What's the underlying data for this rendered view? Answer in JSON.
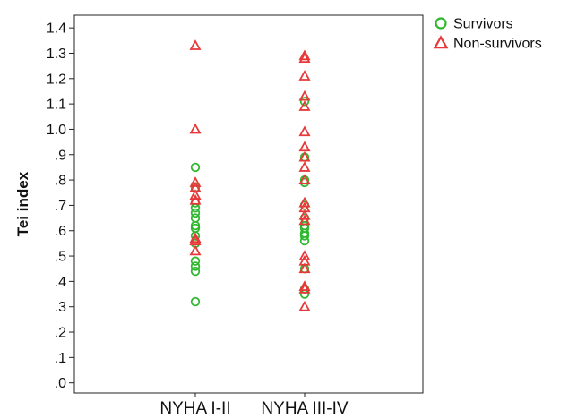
{
  "chart_data": {
    "type": "scatter",
    "title": "",
    "xlabel": "",
    "ylabel": "Tei index",
    "categories": [
      "NYHA I-II",
      "NYHA III-IV"
    ],
    "ylim": [
      -0.04,
      1.45
    ],
    "yticks": [
      ".0",
      ".1",
      ".2",
      ".3",
      ".4",
      ".5",
      ".6",
      ".7",
      ".8",
      ".9",
      "1.0",
      "1.1",
      "1.2",
      "1.3",
      "1.4"
    ],
    "grid": false,
    "legend_position": "top-right",
    "series": [
      {
        "name": "Survivors",
        "marker": "circle",
        "color": "#2eb82e",
        "points": [
          {
            "category": "NYHA I-II",
            "y": 0.85
          },
          {
            "category": "NYHA I-II",
            "y": 0.77
          },
          {
            "category": "NYHA I-II",
            "y": 0.71
          },
          {
            "category": "NYHA I-II",
            "y": 0.69
          },
          {
            "category": "NYHA I-II",
            "y": 0.67
          },
          {
            "category": "NYHA I-II",
            "y": 0.65
          },
          {
            "category": "NYHA I-II",
            "y": 0.62
          },
          {
            "category": "NYHA I-II",
            "y": 0.61
          },
          {
            "category": "NYHA I-II",
            "y": 0.58
          },
          {
            "category": "NYHA I-II",
            "y": 0.55
          },
          {
            "category": "NYHA I-II",
            "y": 0.48
          },
          {
            "category": "NYHA I-II",
            "y": 0.46
          },
          {
            "category": "NYHA I-II",
            "y": 0.44
          },
          {
            "category": "NYHA I-II",
            "y": 0.32
          },
          {
            "category": "NYHA III-IV",
            "y": 1.11
          },
          {
            "category": "NYHA III-IV",
            "y": 0.89
          },
          {
            "category": "NYHA III-IV",
            "y": 0.8
          },
          {
            "category": "NYHA III-IV",
            "y": 0.79
          },
          {
            "category": "NYHA III-IV",
            "y": 0.7
          },
          {
            "category": "NYHA III-IV",
            "y": 0.65
          },
          {
            "category": "NYHA III-IV",
            "y": 0.62
          },
          {
            "category": "NYHA III-IV",
            "y": 0.61
          },
          {
            "category": "NYHA III-IV",
            "y": 0.59
          },
          {
            "category": "NYHA III-IV",
            "y": 0.58
          },
          {
            "category": "NYHA III-IV",
            "y": 0.56
          },
          {
            "category": "NYHA III-IV",
            "y": 0.45
          },
          {
            "category": "NYHA III-IV",
            "y": 0.37
          },
          {
            "category": "NYHA III-IV",
            "y": 0.35
          }
        ]
      },
      {
        "name": "Non-survivors",
        "marker": "triangle",
        "color": "#e8393a",
        "points": [
          {
            "category": "NYHA I-II",
            "y": 1.33
          },
          {
            "category": "NYHA I-II",
            "y": 1.0
          },
          {
            "category": "NYHA I-II",
            "y": 0.79
          },
          {
            "category": "NYHA I-II",
            "y": 0.77
          },
          {
            "category": "NYHA I-II",
            "y": 0.74
          },
          {
            "category": "NYHA I-II",
            "y": 0.72
          },
          {
            "category": "NYHA I-II",
            "y": 0.57
          },
          {
            "category": "NYHA I-II",
            "y": 0.56
          },
          {
            "category": "NYHA I-II",
            "y": 0.52
          },
          {
            "category": "NYHA III-IV",
            "y": 1.29
          },
          {
            "category": "NYHA III-IV",
            "y": 1.28
          },
          {
            "category": "NYHA III-IV",
            "y": 1.21
          },
          {
            "category": "NYHA III-IV",
            "y": 1.13
          },
          {
            "category": "NYHA III-IV",
            "y": 1.09
          },
          {
            "category": "NYHA III-IV",
            "y": 0.99
          },
          {
            "category": "NYHA III-IV",
            "y": 0.93
          },
          {
            "category": "NYHA III-IV",
            "y": 0.89
          },
          {
            "category": "NYHA III-IV",
            "y": 0.85
          },
          {
            "category": "NYHA III-IV",
            "y": 0.8
          },
          {
            "category": "NYHA III-IV",
            "y": 0.71
          },
          {
            "category": "NYHA III-IV",
            "y": 0.69
          },
          {
            "category": "NYHA III-IV",
            "y": 0.66
          },
          {
            "category": "NYHA III-IV",
            "y": 0.64
          },
          {
            "category": "NYHA III-IV",
            "y": 0.5
          },
          {
            "category": "NYHA III-IV",
            "y": 0.48
          },
          {
            "category": "NYHA III-IV",
            "y": 0.45
          },
          {
            "category": "NYHA III-IV",
            "y": 0.38
          },
          {
            "category": "NYHA III-IV",
            "y": 0.37
          },
          {
            "category": "NYHA III-IV",
            "y": 0.3
          }
        ]
      }
    ]
  }
}
